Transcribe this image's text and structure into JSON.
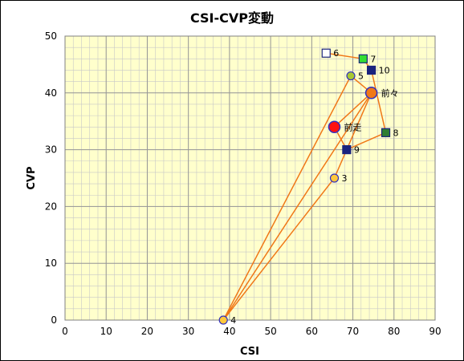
{
  "chart_data": {
    "type": "scatter",
    "title": "CSI-CVP変動",
    "xlabel": "CSI",
    "ylabel": "CVP",
    "xlim": [
      0,
      90
    ],
    "ylim": [
      0,
      50
    ],
    "xticks": [
      0,
      10,
      20,
      30,
      40,
      50,
      60,
      70,
      80,
      90
    ],
    "yticks": [
      0,
      10,
      20,
      30,
      40,
      50
    ],
    "grid": true,
    "background": "#ffffcc",
    "line_color": "#f07818",
    "points": [
      {
        "label": "6",
        "x": 63.5,
        "y": 47,
        "marker": "square",
        "fill": "#ffffff"
      },
      {
        "label": "7",
        "x": 72.5,
        "y": 46,
        "marker": "square",
        "fill": "#33dd33"
      },
      {
        "label": "10",
        "x": 74.5,
        "y": 44,
        "marker": "square",
        "fill": "#1a237e"
      },
      {
        "label": "5",
        "x": 69.5,
        "y": 43,
        "marker": "circle",
        "fill": "#a8c832"
      },
      {
        "label": "前々",
        "x": 74.5,
        "y": 40,
        "marker": "circle_large",
        "fill": "#f07818"
      },
      {
        "label": "前走",
        "x": 65.5,
        "y": 34,
        "marker": "circle_large",
        "fill": "#ff1010"
      },
      {
        "label": "8",
        "x": 78,
        "y": 33,
        "marker": "square",
        "fill": "#2e7d32"
      },
      {
        "label": "9",
        "x": 68.5,
        "y": 30,
        "marker": "square",
        "fill": "#1a237e"
      },
      {
        "label": "3",
        "x": 65.5,
        "y": 25,
        "marker": "circle",
        "fill": "#ffc83c"
      },
      {
        "label": "4",
        "x": 38.5,
        "y": 0,
        "marker": "circle",
        "fill": "#ffc83c"
      }
    ],
    "path_order": [
      "6",
      "7",
      "10",
      "8",
      "9",
      "3",
      "4",
      "5",
      "前々",
      "9",
      "前走",
      "前々",
      "4"
    ]
  }
}
